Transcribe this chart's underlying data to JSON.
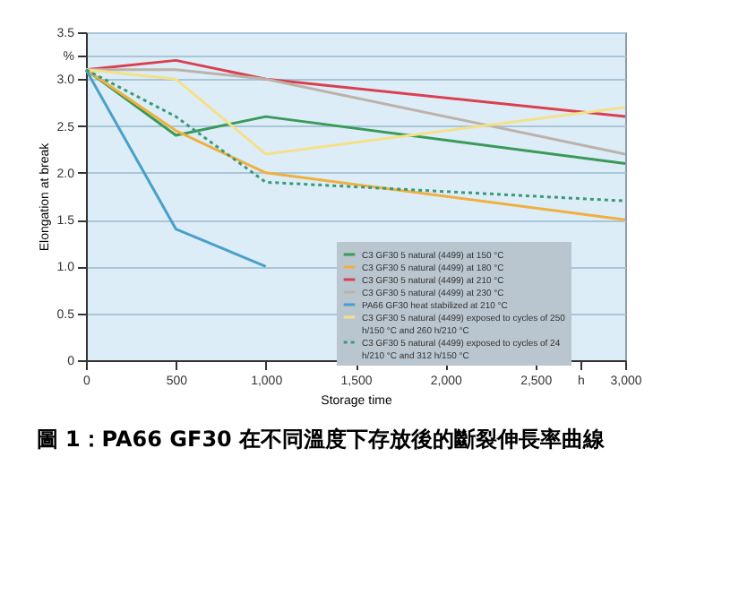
{
  "chart_data": {
    "type": "line",
    "title": "圖 1：PA66 GF30 在不同溫度下存放後的斷裂伸長率曲線",
    "xlabel": "Storage time",
    "ylabel": "Elongation at break",
    "x": [
      0,
      500,
      1000,
      3000
    ],
    "xlim": [
      0,
      3000
    ],
    "xticks": [
      0,
      500,
      {
        "value": 1000,
        "label": "1,000"
      },
      {
        "value": 1500,
        "label": "1,500"
      },
      {
        "value": 2000,
        "label": "2,000"
      },
      {
        "value": 2500,
        "label": "2,500"
      },
      {
        "value": 2750,
        "label": "h"
      },
      {
        "value": 3000,
        "label": "3,000"
      }
    ],
    "ylim": [
      0,
      3.5
    ],
    "yticks": [
      0,
      0.5,
      {
        "value": 1,
        "label": "1.0"
      },
      1.5,
      {
        "value": 2,
        "label": "2.0"
      },
      2.5,
      {
        "value": 3,
        "label": "3.0"
      },
      {
        "value": 3.25,
        "label": "%"
      },
      3.5
    ],
    "grid": "y",
    "legend": "bottom right",
    "series": [
      {
        "name": "C3 GF30 5 natural (4499) at 150 °C",
        "color": "#3a9a5a",
        "values": [
          3.1,
          2.4,
          2.6,
          2.1
        ]
      },
      {
        "name": "C3 GF30 5 natural (4499) at 180 °C",
        "color": "#f0b040",
        "values": [
          3.1,
          2.45,
          2.0,
          1.5
        ]
      },
      {
        "name": "C3 GF30 5 natural (4499) at 210 °C",
        "color": "#d94050",
        "values": [
          3.1,
          3.2,
          3.0,
          2.6
        ]
      },
      {
        "name": "C3 GF30 5 natural (4499) at 230 °C",
        "color": "#bcb2aa",
        "values": [
          3.1,
          3.1,
          3.0,
          2.2
        ]
      },
      {
        "name": "PA66 GF30 heat stabilized at 210 °C",
        "color": "#4aa0c8",
        "values": [
          3.1,
          1.4,
          1.0,
          null
        ]
      },
      {
        "name": "C3 GF30 5 natural (4499) exposed to cycles of 250 h/150 °C and 260 h/210 °C",
        "color": "#f5e08a",
        "values": [
          3.1,
          3.0,
          2.2,
          2.7
        ]
      },
      {
        "name": "C3 GF30 5 natural (4499) exposed to cycles of 24 h/210 °C and 312 h/150 °C",
        "color": "#3a9a7a",
        "line_style": "dotted",
        "values": [
          3.1,
          2.6,
          1.9,
          1.7
        ]
      }
    ]
  }
}
